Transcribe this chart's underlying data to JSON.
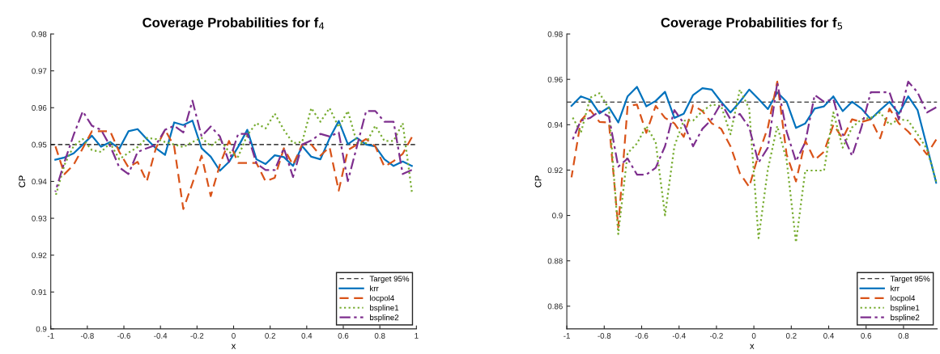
{
  "chart_data": [
    {
      "type": "line",
      "title": "Coverage Probabilities for f$_{4}$",
      "xlabel": "x",
      "ylabel": "CP",
      "x": [
        -0.975,
        -0.925,
        -0.875,
        -0.825,
        -0.775,
        -0.725,
        -0.675,
        -0.625,
        -0.575,
        -0.525,
        -0.475,
        -0.425,
        -0.375,
        -0.325,
        -0.275,
        -0.225,
        -0.175,
        -0.125,
        -0.075,
        -0.025,
        0.025,
        0.075,
        0.125,
        0.175,
        0.225,
        0.275,
        0.325,
        0.375,
        0.425,
        0.475,
        0.525,
        0.575,
        0.625,
        0.675,
        0.725,
        0.775,
        0.825,
        0.875,
        0.925,
        0.975
      ],
      "xlim": [
        -1,
        1
      ],
      "xticks": [
        -1,
        -0.8,
        -0.6,
        -0.4,
        -0.2,
        0,
        0.2,
        0.4,
        0.6,
        0.8,
        1
      ],
      "ylim": [
        0.9,
        0.98
      ],
      "yticks": [
        0.9,
        0.91,
        0.92,
        0.93,
        0.94,
        0.95,
        0.96,
        0.97,
        0.98
      ],
      "grid": false,
      "legend": "bottom right",
      "ref_lines": [
        {
          "axis": "y",
          "value": 0.95,
          "label": "Target 95%",
          "color": "#000000",
          "line_style": "dashed"
        }
      ],
      "series": [
        {
          "name": "krr",
          "color": "#0072bd",
          "line_style": "solid",
          "values": [
            0.9459,
            0.9465,
            0.9476,
            0.95,
            0.9524,
            0.9494,
            0.9507,
            0.9489,
            0.9536,
            0.9542,
            0.9515,
            0.949,
            0.9472,
            0.956,
            0.9553,
            0.9565,
            0.949,
            0.9467,
            0.9429,
            0.9453,
            0.9494,
            0.954,
            0.946,
            0.9447,
            0.9471,
            0.9466,
            0.9442,
            0.9496,
            0.9467,
            0.946,
            0.9517,
            0.9564,
            0.9501,
            0.9518,
            0.95,
            0.9495,
            0.946,
            0.9442,
            0.9454,
            0.9442
          ]
        },
        {
          "name": "locpol4",
          "color": "#d95319",
          "line_style": "dashed",
          "values": [
            0.9496,
            0.942,
            0.9445,
            0.949,
            0.9536,
            0.9536,
            0.9536,
            0.948,
            0.9438,
            0.9453,
            0.94,
            0.949,
            0.954,
            0.9495,
            0.9325,
            0.9395,
            0.947,
            0.936,
            0.9445,
            0.951,
            0.945,
            0.945,
            0.945,
            0.94,
            0.941,
            0.949,
            0.9445,
            0.95,
            0.95,
            0.947,
            0.9493,
            0.9375,
            0.9485,
            0.95,
            0.9515,
            0.9495,
            0.944,
            0.9455,
            0.9475,
            0.952
          ]
        },
        {
          "name": "bspline1",
          "color": "#77ac30",
          "line_style": "dotted",
          "values": [
            0.9358,
            0.9445,
            0.9496,
            0.9515,
            0.9485,
            0.948,
            0.9504,
            0.946,
            0.9478,
            0.9493,
            0.9518,
            0.9515,
            0.9507,
            0.95,
            0.9493,
            0.9507,
            0.9518,
            0.9496,
            0.9515,
            0.948,
            0.9467,
            0.9526,
            0.9558,
            0.9544,
            0.9584,
            0.954,
            0.9504,
            0.9507,
            0.9599,
            0.9562,
            0.9599,
            0.9547,
            0.9591,
            0.9504,
            0.9504,
            0.9551,
            0.951,
            0.951,
            0.9558,
            0.9372
          ]
        },
        {
          "name": "bspline2",
          "color": "#7e2f8e",
          "line_style": "dashdot",
          "values": [
            0.9372,
            0.9453,
            0.9526,
            0.959,
            0.9551,
            0.954,
            0.9496,
            0.9438,
            0.942,
            0.948,
            0.949,
            0.9499,
            0.954,
            0.9551,
            0.9533,
            0.9619,
            0.9522,
            0.9549,
            0.9522,
            0.9453,
            0.9529,
            0.9529,
            0.9449,
            0.9431,
            0.9431,
            0.949,
            0.9412,
            0.95,
            0.9511,
            0.9529,
            0.9522,
            0.9533,
            0.9401,
            0.9496,
            0.9591,
            0.9591,
            0.9562,
            0.9562,
            0.942,
            0.9431
          ]
        }
      ]
    },
    {
      "type": "line",
      "title": "Coverage Probabilities for f$_{5}$",
      "xlabel": "x",
      "ylabel": "CP",
      "x": [
        -0.975,
        -0.925,
        -0.875,
        -0.825,
        -0.775,
        -0.725,
        -0.675,
        -0.625,
        -0.575,
        -0.525,
        -0.475,
        -0.425,
        -0.375,
        -0.325,
        -0.275,
        -0.225,
        -0.175,
        -0.125,
        -0.075,
        -0.025,
        0.025,
        0.075,
        0.125,
        0.175,
        0.225,
        0.275,
        0.325,
        0.375,
        0.425,
        0.475,
        0.525,
        0.575,
        0.625,
        0.675,
        0.725,
        0.775,
        0.825,
        0.875,
        0.925,
        0.975
      ],
      "xlim": [
        -1,
        0.98
      ],
      "xticks": [
        -1,
        -0.8,
        -0.6,
        -0.4,
        -0.2,
        0,
        0.2,
        0.4,
        0.6,
        0.8
      ],
      "ylim": [
        0.85,
        0.98
      ],
      "yticks": [
        0.86,
        0.88,
        0.9,
        0.92,
        0.94,
        0.96,
        0.98
      ],
      "grid": false,
      "legend": "bottom right",
      "ref_lines": [
        {
          "axis": "y",
          "value": 0.95,
          "label": "Target 95%",
          "color": "#000000",
          "line_style": "dashed"
        }
      ],
      "series": [
        {
          "name": "krr",
          "color": "#0072bd",
          "line_style": "solid",
          "values": [
            0.9483,
            0.9525,
            0.951,
            0.945,
            0.9477,
            0.941,
            0.9525,
            0.9567,
            0.9481,
            0.9505,
            0.9545,
            0.943,
            0.9448,
            0.9531,
            0.9561,
            0.9555,
            0.9501,
            0.9454,
            0.9501,
            0.9555,
            0.9513,
            0.9469,
            0.9543,
            0.9501,
            0.9386,
            0.9406,
            0.9471,
            0.9481,
            0.9525,
            0.946,
            0.9501,
            0.9471,
            0.9424,
            0.9465,
            0.9501,
            0.9448,
            0.9525,
            0.9465,
            0.9305,
            0.9144
          ]
        },
        {
          "name": "locpol4",
          "color": "#d95319",
          "line_style": "dashed",
          "values": [
            0.9168,
            0.9418,
            0.9465,
            0.9412,
            0.941,
            0.8948,
            0.9483,
            0.9489,
            0.9364,
            0.9483,
            0.943,
            0.9406,
            0.9346,
            0.9486,
            0.946,
            0.9406,
            0.9382,
            0.9305,
            0.9186,
            0.9126,
            0.9269,
            0.9388,
            0.959,
            0.9269,
            0.915,
            0.9329,
            0.9245,
            0.9281,
            0.94,
            0.934,
            0.9424,
            0.9412,
            0.9424,
            0.934,
            0.9471,
            0.9406,
            0.937,
            0.9323,
            0.9269,
            0.9335
          ]
        },
        {
          "name": "bspline1",
          "color": "#77ac30",
          "line_style": "dotted",
          "values": [
            0.9442,
            0.9364,
            0.9519,
            0.9539,
            0.9471,
            0.8918,
            0.9275,
            0.9317,
            0.9394,
            0.9323,
            0.9001,
            0.9305,
            0.9418,
            0.9418,
            0.946,
            0.9489,
            0.9483,
            0.9358,
            0.9555,
            0.9471,
            0.89,
            0.9204,
            0.9394,
            0.9245,
            0.8882,
            0.9198,
            0.9198,
            0.9198,
            0.9454,
            0.9299,
            0.9388,
            0.9424,
            0.943,
            0.9454,
            0.94,
            0.9424,
            0.9418,
            0.9358,
            0.9293,
            0.915
          ]
        },
        {
          "name": "bspline2",
          "color": "#7e2f8e",
          "line_style": "dashdot",
          "values": [
            0.9323,
            0.9418,
            0.943,
            0.946,
            0.9436,
            0.9215,
            0.9251,
            0.918,
            0.918,
            0.921,
            0.9305,
            0.9465,
            0.9406,
            0.9305,
            0.9382,
            0.9424,
            0.9495,
            0.9424,
            0.9448,
            0.9388,
            0.9233,
            0.9299,
            0.9585,
            0.937,
            0.9239,
            0.9323,
            0.9531,
            0.9501,
            0.9513,
            0.9358,
            0.9263,
            0.9388,
            0.9543,
            0.9543,
            0.9543,
            0.9424,
            0.959,
            0.9543,
            0.9454,
            0.9477
          ]
        }
      ]
    }
  ]
}
